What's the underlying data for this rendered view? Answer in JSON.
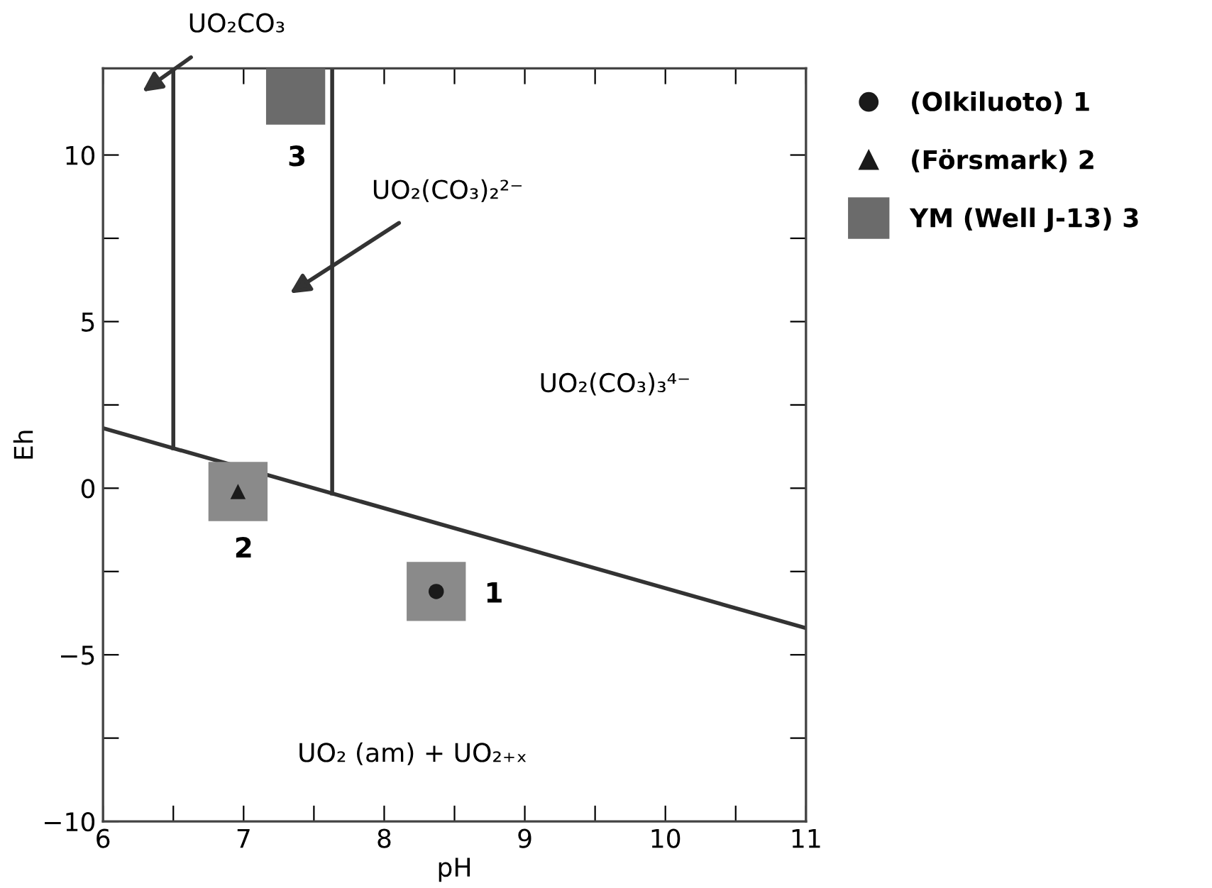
{
  "chart_data": {
    "type": "scatter",
    "xlabel": "pH",
    "ylabel": "Eh",
    "xlim": [
      6,
      11
    ],
    "xticks": [
      6,
      {
        "value": 6.5,
        "label": null
      },
      7,
      {
        "value": 7.5,
        "label": null
      },
      8,
      {
        "value": 8.5,
        "label": null
      },
      9,
      {
        "value": 9.5,
        "label": null
      },
      10,
      {
        "value": 10.5,
        "label": null
      },
      11
    ],
    "ylim": [
      -10,
      12.6
    ],
    "yticks": [
      -10,
      {
        "value": -7.5,
        "label": null
      },
      -5,
      {
        "value": -2.5,
        "label": null
      },
      0,
      {
        "value": 2.5,
        "label": null
      },
      5,
      {
        "value": 7.5,
        "label": null
      },
      10
    ],
    "grid": false,
    "legend": "top right",
    "series": [
      {
        "name": "(Olkiluoto) 1",
        "marker": "circle",
        "color": "#1a1a1a",
        "x": [
          8.37
        ],
        "values": [
          -3.1
        ]
      },
      {
        "name": "(Försmark) 2",
        "marker": "triangle",
        "color": "#1a1a1a",
        "x": [
          6.96
        ],
        "values": [
          -0.1
        ]
      },
      {
        "name": "YM (Well J-13) 3",
        "marker": "square",
        "color": "#6b6b6b",
        "x": [
          7.37
        ],
        "values": [
          11.8
        ]
      },
      {
        "type": "line",
        "color": "#333333",
        "x": [
          6,
          11
        ],
        "values": [
          1.8,
          -4.2
        ]
      },
      {
        "type": "line",
        "color": "#333333",
        "x": [
          6.5,
          6.5
        ],
        "values": [
          12.6,
          1.2
        ]
      },
      {
        "type": "line",
        "color": "#333333",
        "x": [
          7.63,
          7.63
        ],
        "values": [
          12.6,
          -0.16
        ]
      }
    ],
    "annotations": [
      "UO₂CO₃",
      "UO₂(CO₃)₂²⁻",
      "UO₂(CO₃)₃⁴⁻",
      "UO₂ (am) + UO₂₊ₓ",
      "1",
      "2",
      "3"
    ]
  }
}
